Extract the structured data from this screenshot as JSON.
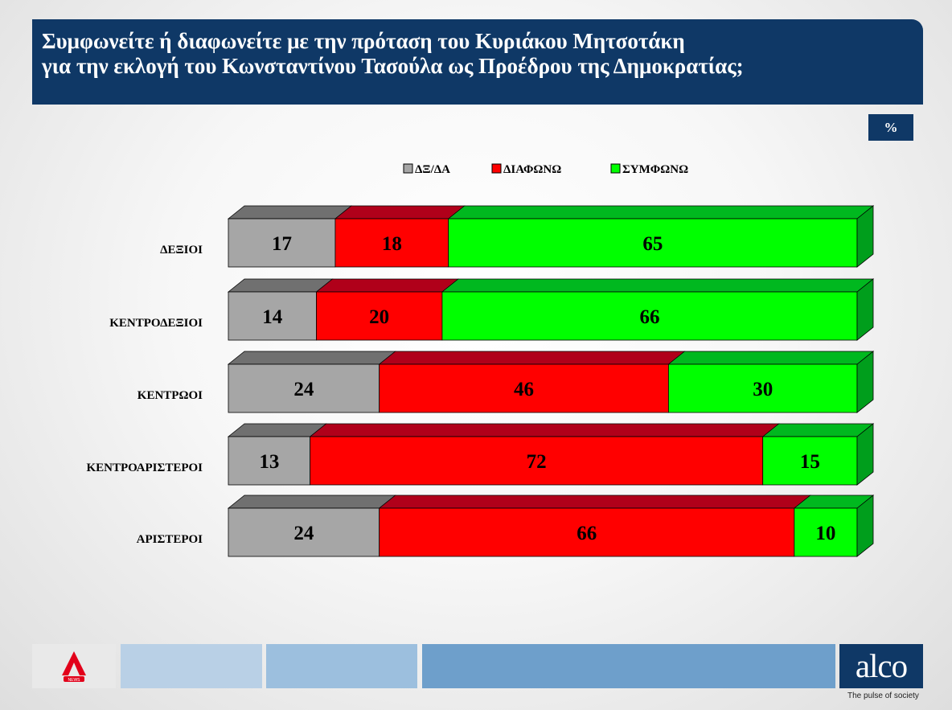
{
  "header": {
    "title_line1": "Συμφωνείτε ή διαφωνείτε με την πρόταση του Κυριάκου Μητσοτάκη",
    "title_line2": "για την εκλογή του Κωνσταντίνου Τασούλα ως Προέδρου της Δημοκρατίας;",
    "unit": "%"
  },
  "chart_data": {
    "type": "bar",
    "orientation": "horizontal",
    "stacked": true,
    "percent_stacked": true,
    "three_d": true,
    "categories": [
      "ΔΕΞΙΟΙ",
      "ΚΕΝΤΡΟΔΕΞΙΟΙ",
      "ΚΕΝΤΡΩΟΙ",
      "ΚΕΝΤΡΟΑΡΙΣΤΕΡΟΙ",
      "ΑΡΙΣΤΕΡΟΙ"
    ],
    "series": [
      {
        "name": "ΔΞ/ΔΑ",
        "color": "#a6a6a6",
        "top_color": "#707070",
        "side_color": "#707070",
        "values": [
          17,
          14,
          24,
          13,
          24
        ]
      },
      {
        "name": "ΔΙΑΦΩΝΩ",
        "color": "#ff0000",
        "top_color": "#b0001a",
        "side_color": "#a0001a",
        "values": [
          18,
          20,
          46,
          72,
          66
        ]
      },
      {
        "name": "ΣΥΜΦΩΝΩ",
        "color": "#00ff00",
        "top_color": "#00b81f",
        "side_color": "#009e1c",
        "values": [
          65,
          66,
          30,
          15,
          10
        ]
      }
    ],
    "legend_position": "top",
    "data_labels": true,
    "grid": false
  },
  "footer": {
    "brand_left": "ALPHA NEWS",
    "brand_left_color": "#e2001a",
    "brand_right": "alco",
    "tagline": "The pulse of society",
    "bar_colors": [
      "#b9d0e6",
      "#9cbfde",
      "#6e9fcb"
    ]
  }
}
